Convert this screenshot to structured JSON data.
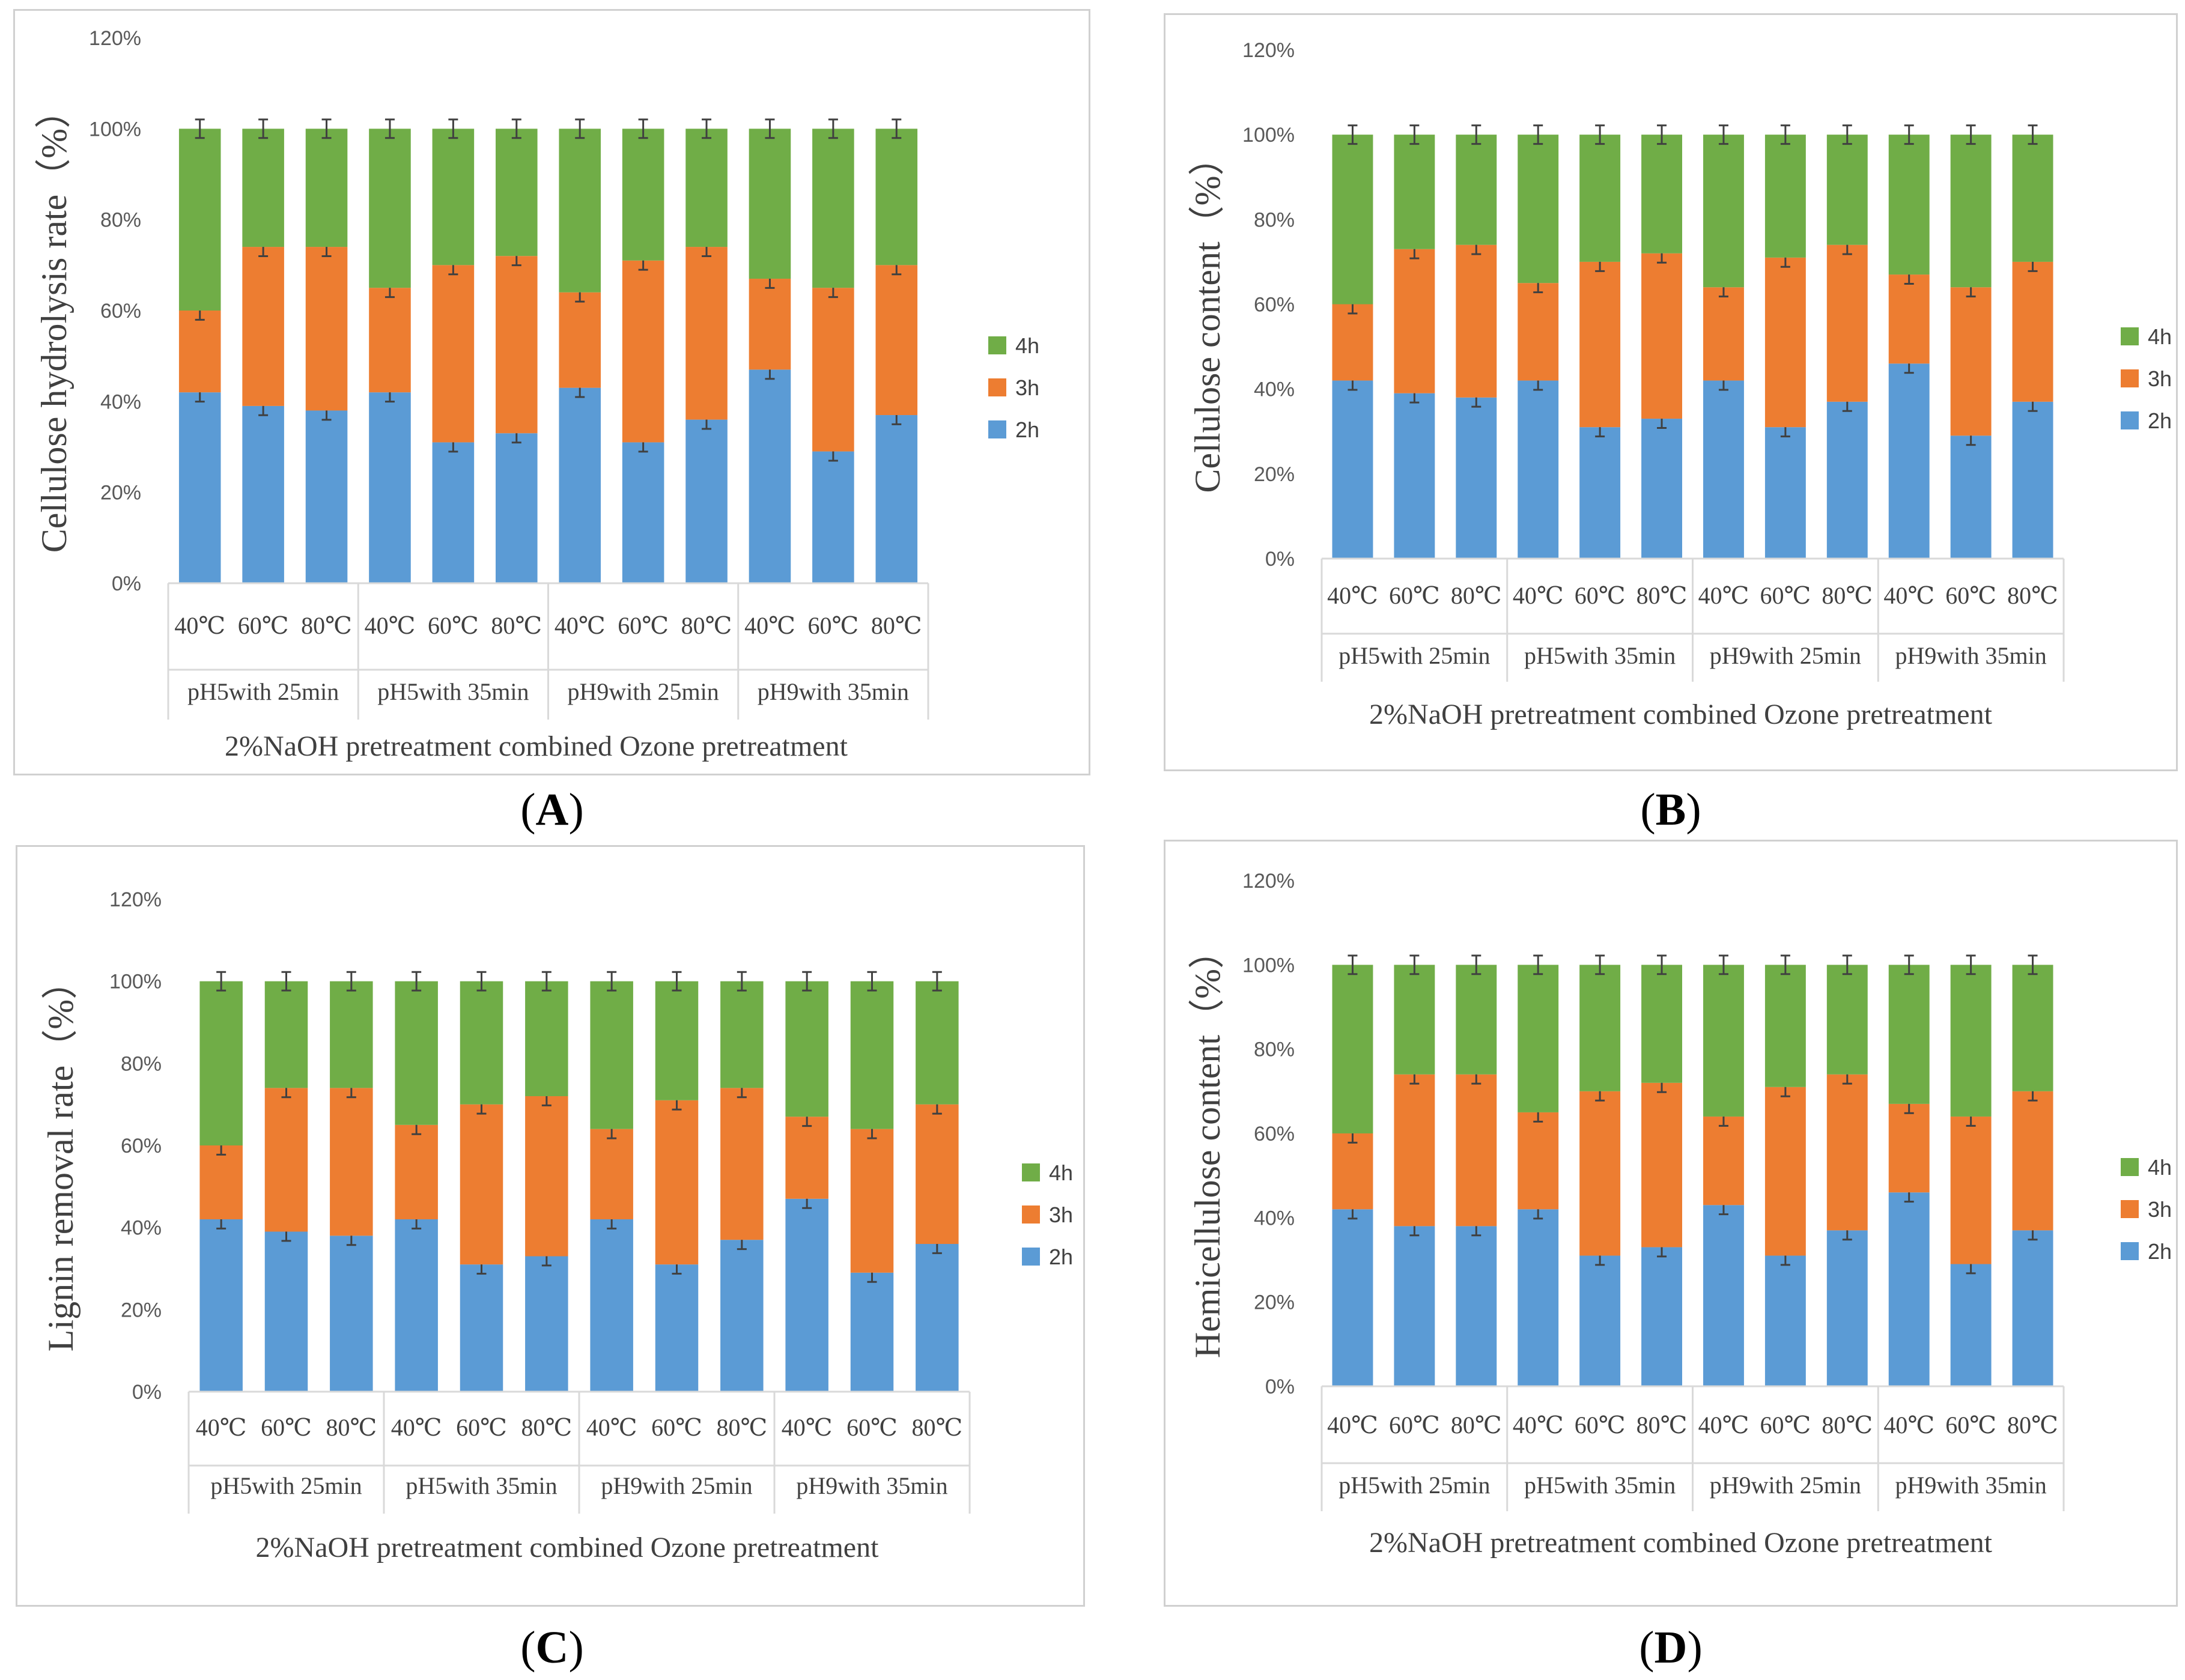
{
  "series_names": [
    "4h",
    "3h",
    "2h"
  ],
  "colors": {
    "h4": "#70AD47",
    "h3": "#ED7D31",
    "h2": "#5B9BD5",
    "axis": "#d9d9d9",
    "err": "#404040"
  },
  "panel_labels": [
    "A",
    "B",
    "C",
    "D"
  ],
  "chart_data": [
    {
      "type": "bar",
      "stacked": true,
      "ylabel": "Cellulose hydrolysis rate（%）",
      "xlabel": "2%NaOH pretreatment combined Ozone pretreatment",
      "yticks": [
        "0%",
        "20%",
        "40%",
        "60%",
        "80%",
        "100%",
        "120%"
      ],
      "ylim": [
        0,
        120
      ],
      "categories": [
        "40℃",
        "60℃",
        "80℃",
        "40℃",
        "60℃",
        "80℃",
        "40℃",
        "60℃",
        "80℃",
        "40℃",
        "60℃",
        "80℃"
      ],
      "groups": [
        "pH5with 25min",
        "pH5with 35min",
        "pH9with 25min",
        "pH9with 35min"
      ],
      "series": [
        {
          "name": "2h",
          "values": [
            42,
            39,
            38,
            42,
            31,
            33,
            43,
            31,
            36,
            47,
            29,
            37
          ]
        },
        {
          "name": "3h",
          "values": [
            18,
            35,
            36,
            23,
            39,
            39,
            21,
            40,
            38,
            20,
            36,
            33
          ]
        },
        {
          "name": "4h",
          "values": [
            40,
            26,
            26,
            35,
            30,
            28,
            36,
            29,
            26,
            33,
            35,
            30
          ]
        }
      ]
    },
    {
      "type": "bar",
      "stacked": true,
      "ylabel": "Cellulose content（%）",
      "xlabel": "2%NaOH pretreatment combined Ozone pretreatment",
      "yticks": [
        "0%",
        "20%",
        "40%",
        "60%",
        "80%",
        "100%",
        "120%"
      ],
      "ylim": [
        0,
        120
      ],
      "categories": [
        "40℃",
        "60℃",
        "80℃",
        "40℃",
        "60℃",
        "80℃",
        "40℃",
        "60℃",
        "80℃",
        "40℃",
        "60℃",
        "80℃"
      ],
      "groups": [
        "pH5with 25min",
        "pH5with 35min",
        "pH9with 25min",
        "pH9with 35min"
      ],
      "series": [
        {
          "name": "2h",
          "values": [
            42,
            39,
            38,
            42,
            31,
            33,
            42,
            31,
            37,
            46,
            29,
            37
          ]
        },
        {
          "name": "3h",
          "values": [
            18,
            34,
            36,
            23,
            39,
            39,
            22,
            40,
            37,
            21,
            35,
            33
          ]
        },
        {
          "name": "4h",
          "values": [
            40,
            27,
            26,
            35,
            30,
            28,
            36,
            29,
            26,
            33,
            36,
            30
          ]
        }
      ]
    },
    {
      "type": "bar",
      "stacked": true,
      "ylabel": "Lignin removal rate（%）",
      "xlabel": "2%NaOH pretreatment combined Ozone pretreatment",
      "yticks": [
        "0%",
        "20%",
        "40%",
        "60%",
        "80%",
        "100%",
        "120%"
      ],
      "ylim": [
        0,
        120
      ],
      "categories": [
        "40℃",
        "60℃",
        "80℃",
        "40℃",
        "60℃",
        "80℃",
        "40℃",
        "60℃",
        "80℃",
        "40℃",
        "60℃",
        "80℃"
      ],
      "groups": [
        "pH5with 25min",
        "pH5with 35min",
        "pH9with 25min",
        "pH9with 35min"
      ],
      "series": [
        {
          "name": "2h",
          "values": [
            42,
            39,
            38,
            42,
            31,
            33,
            42,
            31,
            37,
            47,
            29,
            36
          ]
        },
        {
          "name": "3h",
          "values": [
            18,
            35,
            36,
            23,
            39,
            39,
            22,
            40,
            37,
            20,
            35,
            34
          ]
        },
        {
          "name": "4h",
          "values": [
            40,
            26,
            26,
            35,
            30,
            28,
            36,
            29,
            26,
            33,
            36,
            30
          ]
        }
      ]
    },
    {
      "type": "bar",
      "stacked": true,
      "ylabel": "Hemicellulose content（%）",
      "xlabel": "2%NaOH pretreatment combined Ozone pretreatment",
      "yticks": [
        "0%",
        "20%",
        "40%",
        "60%",
        "80%",
        "100%",
        "120%"
      ],
      "ylim": [
        0,
        120
      ],
      "categories": [
        "40℃",
        "60℃",
        "80℃",
        "40℃",
        "60℃",
        "80℃",
        "40℃",
        "60℃",
        "80℃",
        "40℃",
        "60℃",
        "80℃"
      ],
      "groups": [
        "pH5with 25min",
        "pH5with 35min",
        "pH9with 25min",
        "pH9with 35min"
      ],
      "series": [
        {
          "name": "2h",
          "values": [
            42,
            38,
            38,
            42,
            31,
            33,
            43,
            31,
            37,
            46,
            29,
            37
          ]
        },
        {
          "name": "3h",
          "values": [
            18,
            36,
            36,
            23,
            39,
            39,
            21,
            40,
            37,
            21,
            35,
            33
          ]
        },
        {
          "name": "4h",
          "values": [
            40,
            26,
            26,
            35,
            30,
            28,
            36,
            29,
            26,
            33,
            36,
            30
          ]
        }
      ]
    }
  ]
}
